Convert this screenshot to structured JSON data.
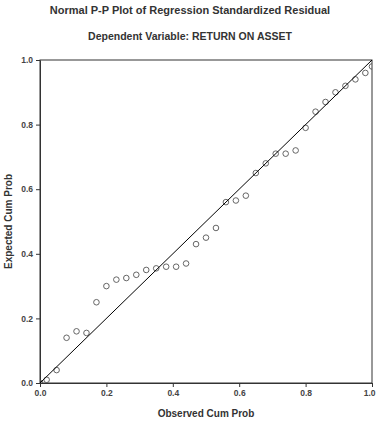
{
  "chart_data": {
    "type": "scatter",
    "title": "Normal P-P Plot of Regression Standardized Residual",
    "subtitle": "Dependent Variable: RETURN ON ASSET",
    "x_label": "Observed Cum Prob",
    "y_label": "Expected Cum Prob",
    "xlim": [
      0,
      1
    ],
    "ylim": [
      0,
      1
    ],
    "xticks": [
      {
        "value": 0,
        "label": "0.0"
      },
      0.2,
      0.4,
      0.6,
      0.8,
      {
        "value": 1,
        "label": "1.0"
      }
    ],
    "yticks": [
      {
        "value": 0,
        "label": "0.0"
      },
      0.2,
      0.4,
      0.6,
      0.8,
      {
        "value": 1,
        "label": "1.0"
      }
    ],
    "grid": false,
    "series": [
      {
        "type": "scatter",
        "marker": "circle",
        "color": "#555555",
        "x": [
          0.0,
          0.02,
          0.05,
          0.08,
          0.11,
          0.14,
          0.17,
          0.2,
          0.23,
          0.26,
          0.29,
          0.32,
          0.35,
          0.38,
          0.41,
          0.44,
          0.47,
          0.5,
          0.53,
          0.56,
          0.59,
          0.62,
          0.65,
          0.68,
          0.71,
          0.74,
          0.77,
          0.8,
          0.83,
          0.86,
          0.89,
          0.92,
          0.95,
          0.98,
          1.0
        ],
        "values": [
          0.0,
          0.01,
          0.04,
          0.14,
          0.16,
          0.155,
          0.25,
          0.3,
          0.32,
          0.325,
          0.335,
          0.35,
          0.355,
          0.36,
          0.36,
          0.37,
          0.43,
          0.45,
          0.48,
          0.56,
          0.565,
          0.58,
          0.65,
          0.68,
          0.71,
          0.71,
          0.72,
          0.79,
          0.84,
          0.87,
          0.9,
          0.92,
          0.94,
          0.96,
          0.98
        ]
      },
      {
        "type": "line",
        "line_style": "solid",
        "color": "#000000",
        "x": [
          0,
          1
        ],
        "values": [
          0,
          1
        ]
      }
    ]
  }
}
